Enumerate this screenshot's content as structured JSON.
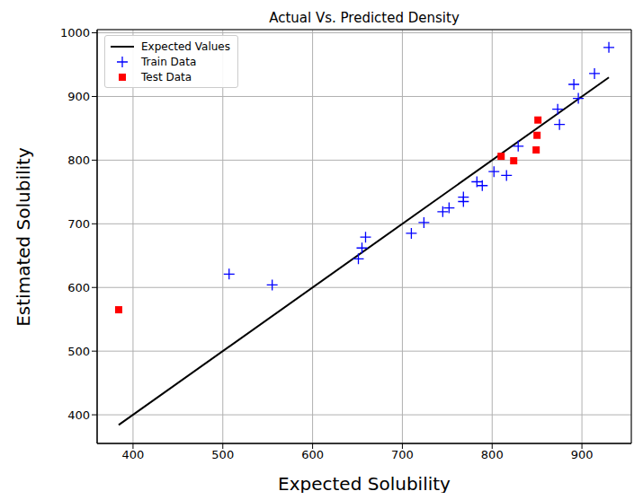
{
  "chart_data": {
    "type": "scatter",
    "title": "Actual Vs. Predicted Density",
    "x_label": "Expected Solubility",
    "y_label": "Estimated Solubility",
    "xlim": [
      360,
      955
    ],
    "ylim": [
      355,
      1005
    ],
    "xticks": [
      400,
      500,
      600,
      700,
      800,
      900
    ],
    "yticks": [
      400,
      500,
      600,
      700,
      800,
      900,
      1000
    ],
    "grid": true,
    "legend": "upper left",
    "series": [
      {
        "name": "Expected Values",
        "type": "line",
        "color": "#000000",
        "line_style": "solid",
        "x": [
          384,
          930
        ],
        "values": [
          384,
          930
        ]
      },
      {
        "name": "Train Data",
        "type": "scatter",
        "color": "#0000ff",
        "marker": "plus",
        "x": [
          507,
          555,
          651,
          655,
          659,
          710,
          724,
          745,
          752,
          768,
          768,
          783,
          789,
          802,
          816,
          829,
          873,
          875,
          891,
          896,
          914,
          930
        ],
        "values": [
          621,
          604,
          645,
          662,
          679,
          685,
          702,
          719,
          725,
          735,
          742,
          766,
          760,
          782,
          776,
          822,
          880,
          856,
          919,
          897,
          936,
          977
        ]
      },
      {
        "name": "Test Data",
        "type": "scatter",
        "color": "#ff0000",
        "marker": "square",
        "x": [
          384,
          810,
          824,
          849,
          850,
          851
        ],
        "values": [
          565,
          806,
          799,
          816,
          839,
          863
        ]
      }
    ]
  }
}
